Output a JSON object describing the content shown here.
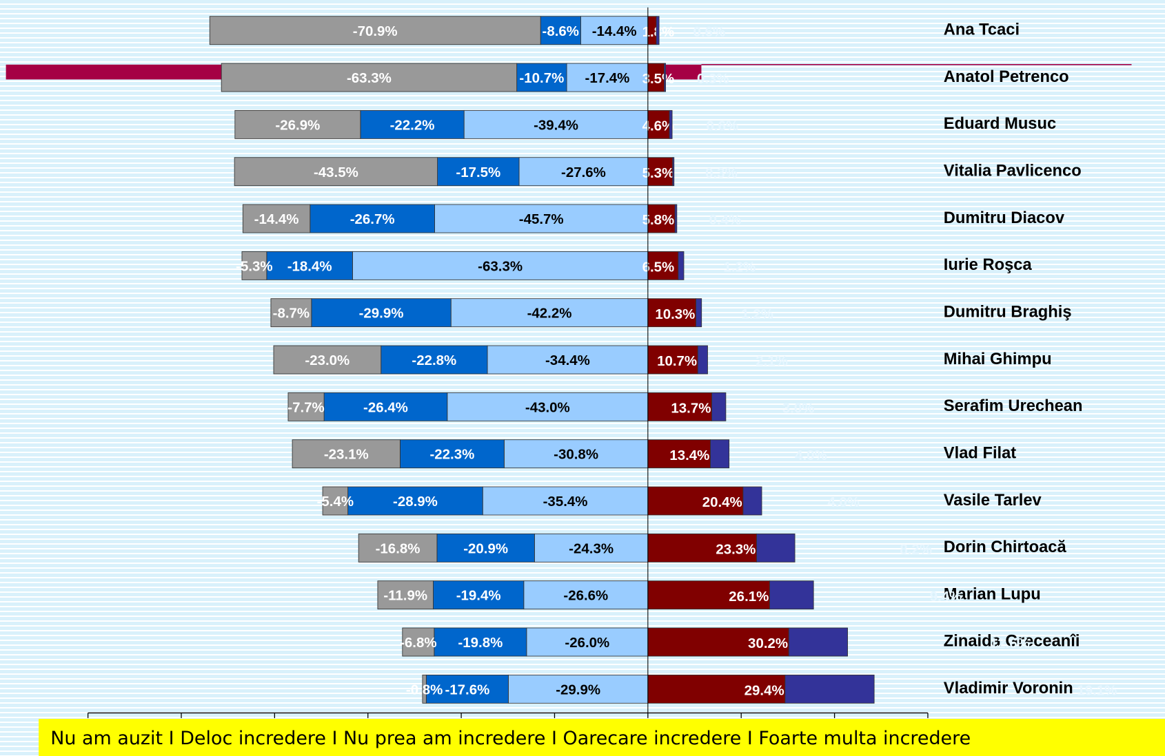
{
  "chart_data": {
    "type": "diverging_bar",
    "orientation": "horizontal",
    "categories": [
      "Ana Tcaci",
      "Anatol Petrenco",
      "Eduard Musuc",
      "Vitalia Pavlicenco",
      "Dumitru Diacov",
      "Iurie Roşca",
      "Dumitru Braghiş",
      "Mihai Ghimpu",
      "Serafim Urechean",
      "Vlad Filat",
      "Vasile Tarlev",
      "Dorin Chirtoacă",
      "Marian Lupu",
      "Zinaida Greceanîi",
      "Vladimir Voronin"
    ],
    "legend_separator": "I",
    "series": [
      {
        "name": "Nu am auzit",
        "color": "#999999",
        "values": [
          -70.9,
          -63.3,
          -26.9,
          -43.5,
          -14.4,
          -5.3,
          -8.7,
          -23.0,
          -7.7,
          -23.1,
          -5.4,
          -16.8,
          -11.9,
          -6.8,
          -0.8
        ],
        "value_labels": [
          "-70.9%",
          "-63.3%",
          "-26.9%",
          "-43.5%",
          "-14.4%",
          "-5.3%",
          "-8.7%",
          "-23.0%",
          "-7.7%",
          "-23.1%",
          "-5.4%",
          "-16.8%",
          "-11.9%",
          "-6.8%",
          "-0.8%"
        ]
      },
      {
        "name": "Deloc incredere",
        "color": "#0066cc",
        "values": [
          -8.6,
          -10.7,
          -22.2,
          -17.5,
          -26.7,
          -18.4,
          -29.9,
          -22.8,
          -26.4,
          -22.3,
          -28.9,
          -20.9,
          -19.4,
          -19.8,
          -17.6
        ],
        "value_labels": [
          "-8.6%",
          "-10.7%",
          "-22.2%",
          "-17.5%",
          "-26.7%",
          "-18.4%",
          "-29.9%",
          "-22.8%",
          "-26.4%",
          "-22.3%",
          "-28.9%",
          "-20.9%",
          "-19.4%",
          "-19.8%",
          "-17.6%"
        ]
      },
      {
        "name": "Nu prea am incredere",
        "color": "#99ccff",
        "values": [
          -14.4,
          -17.4,
          -39.4,
          -27.6,
          -45.7,
          -63.3,
          -42.2,
          -34.4,
          -43.0,
          -30.8,
          -35.4,
          -24.3,
          -26.6,
          -26.0,
          -29.9
        ],
        "value_labels": [
          "-14.4%",
          "-17.4%",
          "-39.4%",
          "-27.6%",
          "-45.7%",
          "-63.3%",
          "-42.2%",
          "-34.4%",
          "-43.0%",
          "-30.8%",
          "-35.4%",
          "-24.3%",
          "-26.6%",
          "-26.0%",
          "-29.9%"
        ]
      },
      {
        "name": "Oarecare incredere",
        "color": "#800000",
        "values": [
          1.8,
          3.5,
          4.6,
          5.3,
          5.8,
          6.5,
          10.3,
          10.7,
          13.7,
          13.4,
          20.4,
          23.3,
          26.1,
          30.2,
          29.4
        ],
        "value_labels": [
          "1.8%",
          "3.5%",
          "4.6%",
          "5.3%",
          "5.8%",
          "6.5%",
          "10.3%",
          "10.7%",
          "13.7%",
          "13.4%",
          "20.4%",
          "23.3%",
          "26.1%",
          "30.2%",
          "29.4%"
        ]
      },
      {
        "name": "Foarte multa incredere",
        "color": "#333399",
        "values": [
          0.6,
          0.3,
          0.6,
          0.3,
          0.4,
          1.2,
          1.2,
          2.1,
          3.0,
          4.0,
          4.0,
          8.2,
          9.4,
          12.6,
          19.1
        ],
        "value_labels": [
          "0.6%",
          "0.3%",
          "0.6%",
          "0.3%",
          "0.4%",
          "1.2%",
          "1.2%",
          "2.1%",
          "3.0%",
          "4.0%",
          "4.0%",
          "8.2%",
          "9.4%",
          "12.6%",
          "19.1%"
        ]
      }
    ],
    "xlim": [
      -120,
      60
    ],
    "xticks": [
      -120,
      -100,
      -80,
      -60,
      -40,
      -20,
      0,
      20,
      40,
      60
    ]
  }
}
